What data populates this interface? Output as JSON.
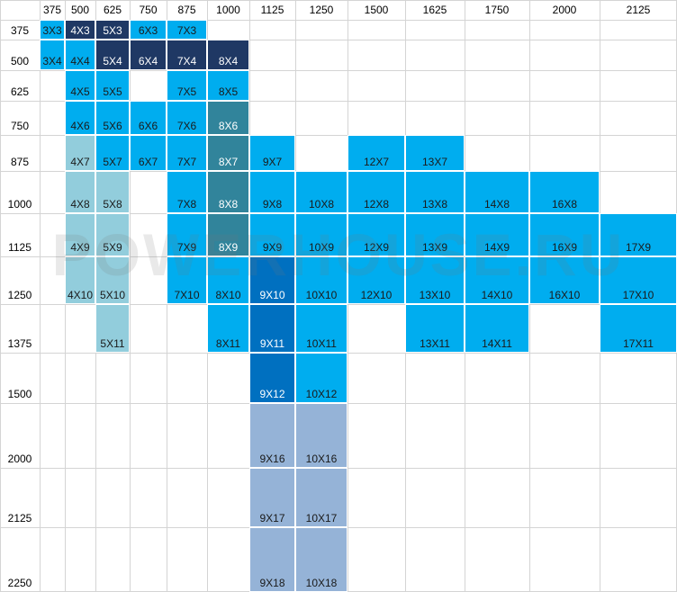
{
  "chart_data": {
    "type": "table",
    "columns": [
      "375",
      "500",
      "625",
      "750",
      "875",
      "1000",
      "1125",
      "1250",
      "1500",
      "1625",
      "1750",
      "2000",
      "2125"
    ],
    "rows": [
      "375",
      "500",
      "625",
      "750",
      "875",
      "1000",
      "1125",
      "1250",
      "1375",
      "1500",
      "2000",
      "2125",
      "2250"
    ],
    "colors": {
      "bright": "#00adef",
      "dark": "#1f3864",
      "teal": "#31849b",
      "light": "#92cddc",
      "mid": "#0070c0",
      "grey": "#95b3d7"
    },
    "cells": [
      {
        "c": 0,
        "r": 0,
        "label": "3X3",
        "color": "bright"
      },
      {
        "c": 1,
        "r": 0,
        "label": "4X3",
        "color": "dark"
      },
      {
        "c": 2,
        "r": 0,
        "label": "5X3",
        "color": "dark"
      },
      {
        "c": 3,
        "r": 0,
        "label": "6X3",
        "color": "bright"
      },
      {
        "c": 4,
        "r": 0,
        "label": "7X3",
        "color": "bright"
      },
      {
        "c": 0,
        "r": 1,
        "label": "3X4",
        "color": "bright"
      },
      {
        "c": 1,
        "r": 1,
        "label": "4X4",
        "color": "bright"
      },
      {
        "c": 2,
        "r": 1,
        "label": "5X4",
        "color": "dark"
      },
      {
        "c": 3,
        "r": 1,
        "label": "6X4",
        "color": "dark"
      },
      {
        "c": 4,
        "r": 1,
        "label": "7X4",
        "color": "dark"
      },
      {
        "c": 5,
        "r": 1,
        "label": "8X4",
        "color": "dark"
      },
      {
        "c": 1,
        "r": 2,
        "label": "4X5",
        "color": "bright"
      },
      {
        "c": 2,
        "r": 2,
        "label": "5X5",
        "color": "bright"
      },
      {
        "c": 4,
        "r": 2,
        "label": "7X5",
        "color": "bright"
      },
      {
        "c": 5,
        "r": 2,
        "label": "8X5",
        "color": "bright"
      },
      {
        "c": 1,
        "r": 3,
        "label": "4X6",
        "color": "bright"
      },
      {
        "c": 2,
        "r": 3,
        "label": "5X6",
        "color": "bright"
      },
      {
        "c": 3,
        "r": 3,
        "label": "6X6",
        "color": "bright"
      },
      {
        "c": 4,
        "r": 3,
        "label": "7X6",
        "color": "bright"
      },
      {
        "c": 5,
        "r": 3,
        "label": "8X6",
        "color": "teal"
      },
      {
        "c": 1,
        "r": 4,
        "label": "4X7",
        "color": "light"
      },
      {
        "c": 2,
        "r": 4,
        "label": "5X7",
        "color": "bright"
      },
      {
        "c": 3,
        "r": 4,
        "label": "6X7",
        "color": "bright"
      },
      {
        "c": 4,
        "r": 4,
        "label": "7X7",
        "color": "bright"
      },
      {
        "c": 5,
        "r": 4,
        "label": "8X7",
        "color": "teal"
      },
      {
        "c": 6,
        "r": 4,
        "label": "9X7",
        "color": "bright"
      },
      {
        "c": 8,
        "r": 4,
        "label": "12X7",
        "color": "bright"
      },
      {
        "c": 9,
        "r": 4,
        "label": "13X7",
        "color": "bright"
      },
      {
        "c": 1,
        "r": 5,
        "label": "4X8",
        "color": "light"
      },
      {
        "c": 2,
        "r": 5,
        "label": "5X8",
        "color": "light"
      },
      {
        "c": 4,
        "r": 5,
        "label": "7X8",
        "color": "bright"
      },
      {
        "c": 5,
        "r": 5,
        "label": "8X8",
        "color": "teal"
      },
      {
        "c": 6,
        "r": 5,
        "label": "9X8",
        "color": "bright"
      },
      {
        "c": 7,
        "r": 5,
        "label": "10X8",
        "color": "bright"
      },
      {
        "c": 8,
        "r": 5,
        "label": "12X8",
        "color": "bright"
      },
      {
        "c": 9,
        "r": 5,
        "label": "13X8",
        "color": "bright"
      },
      {
        "c": 10,
        "r": 5,
        "label": "14X8",
        "color": "bright"
      },
      {
        "c": 11,
        "r": 5,
        "label": "16X8",
        "color": "bright"
      },
      {
        "c": 1,
        "r": 6,
        "label": "4X9",
        "color": "light"
      },
      {
        "c": 2,
        "r": 6,
        "label": "5X9",
        "color": "light"
      },
      {
        "c": 4,
        "r": 6,
        "label": "7X9",
        "color": "bright"
      },
      {
        "c": 5,
        "r": 6,
        "label": "8X9",
        "color": "teal"
      },
      {
        "c": 6,
        "r": 6,
        "label": "9X9",
        "color": "bright"
      },
      {
        "c": 7,
        "r": 6,
        "label": "10X9",
        "color": "bright"
      },
      {
        "c": 8,
        "r": 6,
        "label": "12X9",
        "color": "bright"
      },
      {
        "c": 9,
        "r": 6,
        "label": "13X9",
        "color": "bright"
      },
      {
        "c": 10,
        "r": 6,
        "label": "14X9",
        "color": "bright"
      },
      {
        "c": 11,
        "r": 6,
        "label": "16X9",
        "color": "bright"
      },
      {
        "c": 12,
        "r": 6,
        "label": "17X9",
        "color": "bright"
      },
      {
        "c": 1,
        "r": 7,
        "label": "4X10",
        "color": "light"
      },
      {
        "c": 2,
        "r": 7,
        "label": "5X10",
        "color": "light"
      },
      {
        "c": 4,
        "r": 7,
        "label": "7X10",
        "color": "bright"
      },
      {
        "c": 5,
        "r": 7,
        "label": "8X10",
        "color": "bright"
      },
      {
        "c": 6,
        "r": 7,
        "label": "9X10",
        "color": "mid"
      },
      {
        "c": 7,
        "r": 7,
        "label": "10X10",
        "color": "bright"
      },
      {
        "c": 8,
        "r": 7,
        "label": "12X10",
        "color": "bright"
      },
      {
        "c": 9,
        "r": 7,
        "label": "13X10",
        "color": "bright"
      },
      {
        "c": 10,
        "r": 7,
        "label": "14X10",
        "color": "bright"
      },
      {
        "c": 11,
        "r": 7,
        "label": "16X10",
        "color": "bright"
      },
      {
        "c": 12,
        "r": 7,
        "label": "17X10",
        "color": "bright"
      },
      {
        "c": 2,
        "r": 8,
        "label": "5X11",
        "color": "light"
      },
      {
        "c": 5,
        "r": 8,
        "label": "8X11",
        "color": "bright"
      },
      {
        "c": 6,
        "r": 8,
        "label": "9X11",
        "color": "mid"
      },
      {
        "c": 7,
        "r": 8,
        "label": "10X11",
        "color": "bright"
      },
      {
        "c": 9,
        "r": 8,
        "label": "13X11",
        "color": "bright"
      },
      {
        "c": 10,
        "r": 8,
        "label": "14X11",
        "color": "bright"
      },
      {
        "c": 12,
        "r": 8,
        "label": "17X11",
        "color": "bright"
      },
      {
        "c": 6,
        "r": 9,
        "label": "9X12",
        "color": "mid"
      },
      {
        "c": 7,
        "r": 9,
        "label": "10X12",
        "color": "bright"
      },
      {
        "c": 6,
        "r": 10,
        "label": "9X16",
        "color": "grey"
      },
      {
        "c": 7,
        "r": 10,
        "label": "10X16",
        "color": "grey"
      },
      {
        "c": 6,
        "r": 11,
        "label": "9X17",
        "color": "grey"
      },
      {
        "c": 7,
        "r": 11,
        "label": "10X17",
        "color": "grey"
      },
      {
        "c": 6,
        "r": 12,
        "label": "9X18",
        "color": "grey"
      },
      {
        "c": 7,
        "r": 12,
        "label": "10X18",
        "color": "grey"
      }
    ]
  },
  "watermark": "POWERHOUSE.RU"
}
